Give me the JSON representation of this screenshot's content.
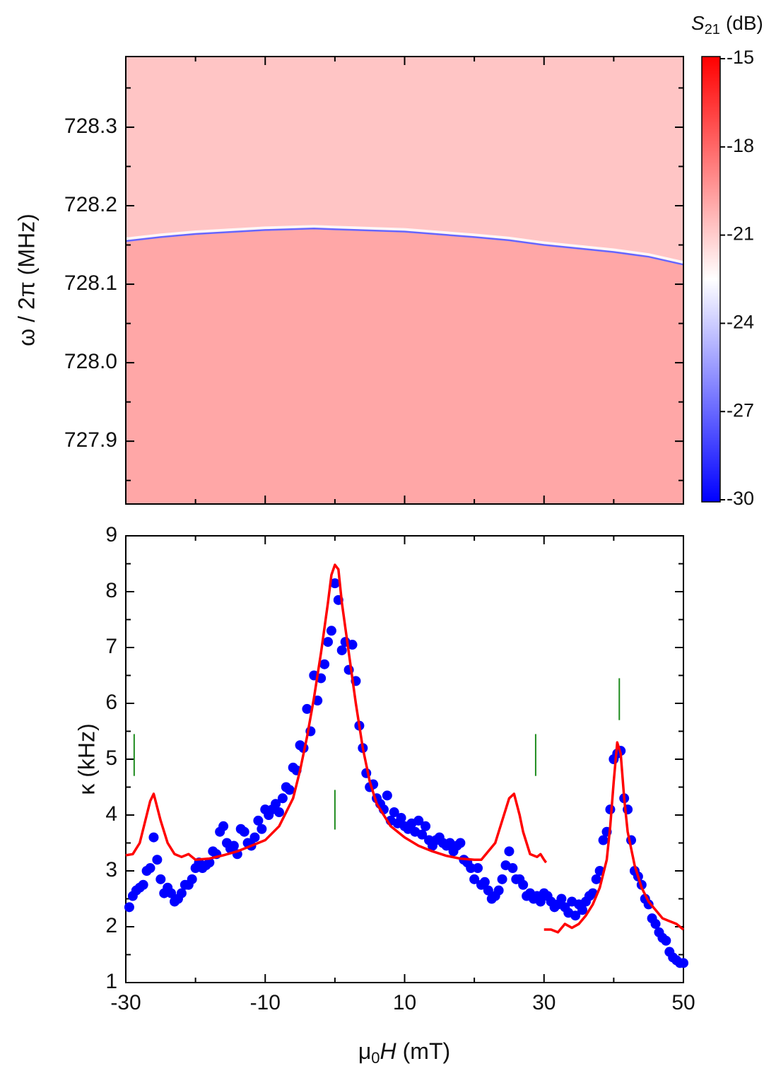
{
  "chart_data": [
    {
      "type": "heatmap",
      "ylabel": "ω / 2π (MHz)",
      "xlim": [
        -30,
        50
      ],
      "xticks": [
        -30,
        -10,
        10,
        30,
        50
      ],
      "xminor": [
        -20,
        0,
        20,
        40
      ],
      "ylim": [
        727.82,
        728.39
      ],
      "yticks": [
        {
          "value": 727.9,
          "label": "727.9"
        },
        {
          "value": 728,
          "label": "728.0"
        },
        {
          "value": 728.1,
          "label": "728.1"
        },
        {
          "value": 728.2,
          "label": "728.2"
        },
        {
          "value": 728.3,
          "label": "728.3"
        }
      ],
      "yminor": [
        727.85,
        727.95,
        728.05,
        728.15,
        728.25,
        728.35
      ],
      "levels": {
        "above": -20.8,
        "below": -19.9,
        "line": -27
      },
      "resonance": {
        "x": [
          -30,
          -25,
          -20,
          -10,
          -3,
          0,
          10,
          20,
          25,
          30,
          40,
          45,
          50
        ],
        "values": [
          728.155,
          728.16,
          728.164,
          728.169,
          728.171,
          728.17,
          728.167,
          728.16,
          728.156,
          728.15,
          728.141,
          728.135,
          728.125
        ]
      },
      "colorbar": {
        "label": [
          "S",
          "21",
          "(dB)"
        ],
        "clim": [
          -30,
          -15
        ],
        "colors": [
          "#0000ff",
          "#ffffff",
          "#ff0000"
        ],
        "ticks": [
          -15,
          -18,
          -21,
          -24,
          -27,
          -30
        ]
      }
    },
    {
      "type": "scatter",
      "ylabel": "κ (kHz)",
      "xlabel": [
        "μ",
        "0",
        "H",
        "(mT)"
      ],
      "xlim": [
        -30,
        50
      ],
      "xticks": [
        -30,
        -10,
        10,
        30,
        50
      ],
      "xminor": [
        -20,
        0,
        20,
        40
      ],
      "ylim": [
        1,
        9
      ],
      "yticks": [
        1,
        2,
        3,
        4,
        5,
        6,
        7,
        8,
        9
      ],
      "yminor": [
        1.5,
        2.5,
        3.5,
        4.5,
        5.5,
        6.5,
        7.5,
        8.5
      ],
      "series": [
        {
          "kind": "dots",
          "color": "#0000ff",
          "x": [
            -29.5,
            -29,
            -28.5,
            -28,
            -27.5,
            -27,
            -26.5,
            -26,
            -25.5,
            -25,
            -24.5,
            -24,
            -23.5,
            -23,
            -22.5,
            -22,
            -21.5,
            -21,
            -20.5,
            -20,
            -19.5,
            -19,
            -18.5,
            -18,
            -17.5,
            -17,
            -16.5,
            -16,
            -15.5,
            -15,
            -14.5,
            -14,
            -13.5,
            -13,
            -12.5,
            -12,
            -11.5,
            -11,
            -10.5,
            -10,
            -9.5,
            -9,
            -8.5,
            -8,
            -7.5,
            -7,
            -6.5,
            -6,
            -5.5,
            -5,
            -4.5,
            -4,
            -3.5,
            -3,
            -2.5,
            -2,
            -1.5,
            -1,
            -0.5,
            0,
            0.5,
            1,
            1.5,
            2,
            2.5,
            3,
            3.5,
            4,
            4.5,
            5,
            5.5,
            6,
            6.5,
            7,
            7.5,
            8,
            8.5,
            9,
            9.5,
            10,
            10.5,
            11,
            11.5,
            12,
            12.5,
            13,
            13.5,
            14,
            14.5,
            15,
            15.5,
            16,
            16.5,
            17,
            17.5,
            18,
            18.5,
            19,
            19.5,
            20,
            20.5,
            21,
            21.5,
            22,
            22.5,
            23,
            23.5,
            24,
            24.5,
            25,
            25.5,
            26,
            26.5,
            27,
            27.5,
            28,
            28.5,
            29,
            29.5,
            30,
            30.5,
            31,
            31.5,
            32,
            32.5,
            33,
            33.5,
            34,
            34.5,
            35,
            35.5,
            36,
            36.5,
            37,
            37.5,
            38,
            38.5,
            39,
            39.5,
            40,
            40.5,
            41,
            41.5,
            42,
            42.5,
            43,
            43.5,
            44,
            44.5,
            45,
            45.5,
            46,
            46.5,
            47,
            47.5,
            48,
            48.5,
            49,
            49.5,
            50
          ],
          "values": [
            2.35,
            2.55,
            2.65,
            2.7,
            2.75,
            3.0,
            3.05,
            3.6,
            3.2,
            2.85,
            2.6,
            2.7,
            2.6,
            2.45,
            2.5,
            2.6,
            2.75,
            2.75,
            2.85,
            3.05,
            3.15,
            3.05,
            3.1,
            3.15,
            3.35,
            3.3,
            3.7,
            3.8,
            3.5,
            3.4,
            3.45,
            3.3,
            3.75,
            3.7,
            3.5,
            3.45,
            3.6,
            3.9,
            3.75,
            4.1,
            4.0,
            4.1,
            4.2,
            4.05,
            4.3,
            4.5,
            4.45,
            4.85,
            4.8,
            5.25,
            5.2,
            5.9,
            5.5,
            6.5,
            6.05,
            6.45,
            6.7,
            7.1,
            7.3,
            8.15,
            7.85,
            6.95,
            7.1,
            6.6,
            7.05,
            6.4,
            5.6,
            5.2,
            4.75,
            4.5,
            4.55,
            4.3,
            4.2,
            4.1,
            4.35,
            3.9,
            4.05,
            3.85,
            3.95,
            3.8,
            3.75,
            3.85,
            3.7,
            3.9,
            3.65,
            3.8,
            3.55,
            3.45,
            3.55,
            3.6,
            3.5,
            3.45,
            3.5,
            3.35,
            3.45,
            3.5,
            3.2,
            3.15,
            3.05,
            2.85,
            3.05,
            2.75,
            2.8,
            2.65,
            2.5,
            2.55,
            2.65,
            2.85,
            3.1,
            3.35,
            3.05,
            2.85,
            2.85,
            2.75,
            2.55,
            2.6,
            2.5,
            2.55,
            2.45,
            2.6,
            2.55,
            2.45,
            2.35,
            2.4,
            2.5,
            2.35,
            2.25,
            2.45,
            2.2,
            2.4,
            2.3,
            2.45,
            2.55,
            2.6,
            2.85,
            3.0,
            3.55,
            3.7,
            4.1,
            5.0,
            5.1,
            5.15,
            4.3,
            4.1,
            3.55,
            3.0,
            2.9,
            2.75,
            2.5,
            2.4,
            2.15,
            2.05,
            1.9,
            1.8,
            1.75,
            1.55,
            1.45,
            1.4,
            1.35,
            1.35
          ]
        },
        {
          "kind": "line",
          "color": "#ff0000",
          "x": [
            -30,
            -29,
            -28,
            -27,
            -26.5,
            -26,
            -25,
            -24,
            -23,
            -22,
            -21,
            -20,
            -18,
            -16,
            -14,
            -12,
            -10,
            -8,
            -6,
            -5,
            -4,
            -3,
            -2,
            -1,
            -0.5,
            0,
            0.5,
            1,
            2,
            3,
            4,
            5,
            6,
            8,
            10,
            12,
            14,
            16,
            18,
            20,
            21,
            22,
            23,
            24,
            25,
            25.7,
            26.5,
            27,
            28,
            29,
            29.5,
            30,
            30.3
          ],
          "values": [
            3.28,
            3.3,
            3.5,
            4.0,
            4.25,
            4.38,
            3.9,
            3.5,
            3.3,
            3.25,
            3.3,
            3.2,
            3.22,
            3.28,
            3.35,
            3.45,
            3.55,
            3.8,
            4.3,
            4.8,
            5.4,
            6.1,
            6.9,
            7.8,
            8.3,
            8.48,
            8.4,
            7.8,
            6.9,
            6.0,
            5.2,
            4.6,
            4.2,
            3.8,
            3.6,
            3.45,
            3.35,
            3.27,
            3.22,
            3.2,
            3.2,
            3.35,
            3.5,
            3.9,
            4.3,
            4.38,
            4.0,
            3.7,
            3.3,
            3.25,
            3.3,
            3.2,
            3.15
          ]
        },
        {
          "kind": "line",
          "color": "#ff0000",
          "x": [
            30,
            31,
            32,
            33,
            34,
            35,
            36,
            37,
            38,
            39,
            39.5,
            40,
            40.5,
            41,
            41.5,
            42,
            43,
            44,
            45,
            46,
            47,
            48,
            49,
            50
          ],
          "values": [
            1.95,
            1.95,
            1.9,
            2.05,
            1.98,
            2.05,
            2.2,
            2.4,
            2.7,
            3.2,
            3.8,
            4.6,
            5.3,
            5.1,
            4.3,
            3.7,
            3.1,
            2.7,
            2.45,
            2.3,
            2.15,
            2.1,
            2.05,
            1.95
          ]
        }
      ],
      "markers": {
        "color": "#1e8c1e",
        "x": [
          -28.8,
          0,
          28.8,
          40.8
        ],
        "y_low": [
          4.7,
          3.74,
          4.7,
          5.7
        ],
        "y_high": [
          5.45,
          4.45,
          5.45,
          6.45
        ]
      }
    }
  ]
}
